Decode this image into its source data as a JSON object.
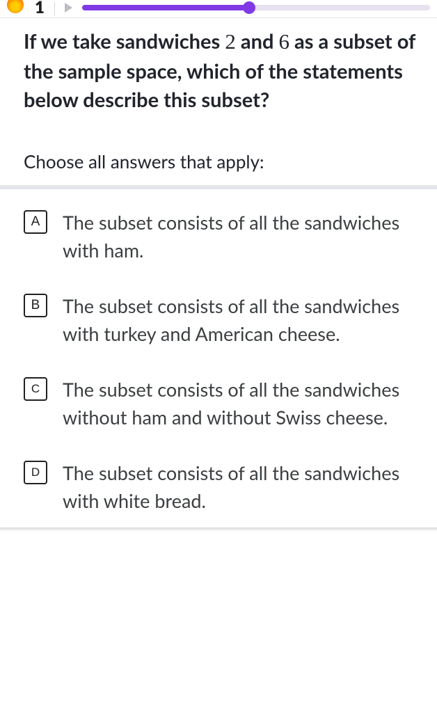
{
  "header": {
    "streak_count": "1",
    "progress": {
      "percent": 48,
      "track_color": "#e6e0ef",
      "fill_color": "#8139e6"
    }
  },
  "question": {
    "stem_prefix": "If we take sandwiches ",
    "num1": "2",
    "mid": " and ",
    "num2": "6",
    "stem_suffix": " as a subset of the sample space, which of the statements below describe this subset?"
  },
  "instruction": "Choose all answers that apply:",
  "choices": [
    {
      "letter": "A",
      "text": "The subset consists of all the sandwiches with ham."
    },
    {
      "letter": "B",
      "text": "The subset consists of all the sandwiches with turkey and American cheese."
    },
    {
      "letter": "C",
      "text": "The subset consists of all the sandwiches without ham and without Swiss cheese."
    },
    {
      "letter": "D",
      "text": "The subset consists of all the sandwiches with white bread."
    }
  ],
  "colors": {
    "text": "#21242c",
    "choice_text": "#3b3e40",
    "divider": "#e3e5e8",
    "border": "#212121"
  }
}
